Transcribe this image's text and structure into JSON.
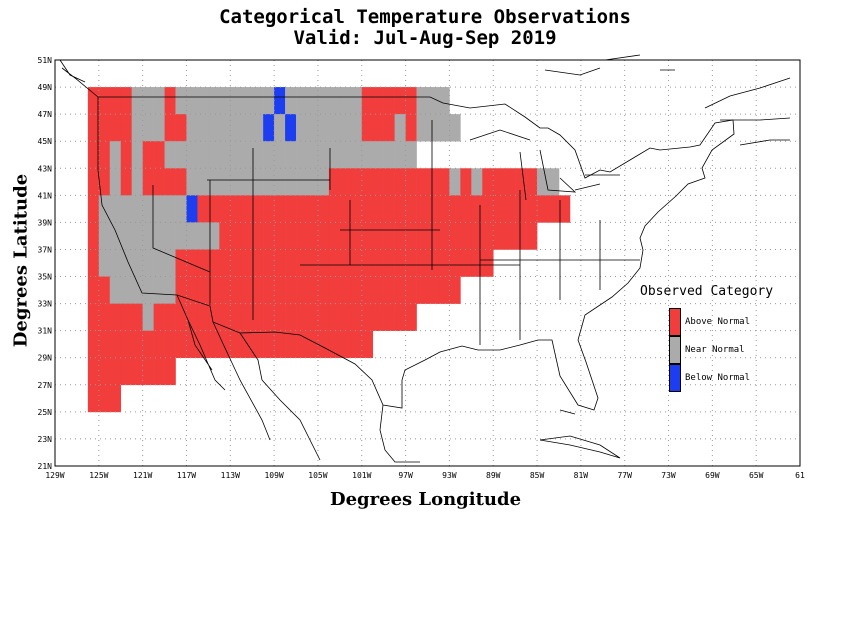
{
  "title": "Categorical Temperature Observations",
  "subtitle": "Valid: Jul-Aug-Sep 2019",
  "x_axis_title": "Degrees Longitude",
  "y_axis_title": "Degrees Latitude",
  "x_ticks": [
    "129W",
    "125W",
    "121W",
    "117W",
    "113W",
    "109W",
    "105W",
    "101W",
    "97W",
    "93W",
    "89W",
    "85W",
    "81W",
    "77W",
    "73W",
    "69W",
    "65W",
    "61"
  ],
  "y_ticks": [
    "51N",
    "49N",
    "47N",
    "45N",
    "43N",
    "41N",
    "39N",
    "37N",
    "35N",
    "33N",
    "31N",
    "29N",
    "27N",
    "25N",
    "23N",
    "21N"
  ],
  "legend": {
    "title": "Observed Category",
    "items": [
      {
        "label": "Above Normal",
        "color": "#f23d3d"
      },
      {
        "label": "Near Normal",
        "color": "#ababab"
      },
      {
        "label": "Below Normal",
        "color": "#1c3ef0"
      }
    ]
  },
  "colors": {
    "above": "#f23d3d",
    "near": "#ababab",
    "below": "#1c3ef0"
  },
  "chart_data": {
    "type": "heatmap",
    "cell_size_deg": 2,
    "xlim": [
      -129,
      -61
    ],
    "ylim": [
      21,
      51
    ],
    "category_codes": {
      "A": "Above Normal",
      "N": "Near Normal",
      "B": "Below Normal"
    },
    "west_edge_lon": -126,
    "rows": [
      {
        "lat_top": 49,
        "cells": "AAAANNNANNNNNNNNNBNNNNNNNAAAAANNN"
      },
      {
        "lat_top": 47,
        "cells": "AAAANNNAANNNNNNNBNBNNNNNNAAANANNNN"
      },
      {
        "lat_top": 45,
        "cells": "AANANAANNNNNNNNNNNNNNNNNNNNNNN"
      },
      {
        "lat_top": 43,
        "cells": "AANANAAAANNNNNNNNNNNNNAAAAAAAAAAANANAAAAANN"
      },
      {
        "lat_top": 41,
        "cells": "ANNNNNNNNBAAAAAAAAAAAAAAAAAAAAAAAAAAAAAAAAAA"
      },
      {
        "lat_top": 39,
        "cells": "ANNNNNNNNNNNAAAAAAAAAAAAAAAAAAAAAAAAAAAAA"
      },
      {
        "lat_top": 37,
        "cells": "ANNNNNNNAAAAAAAAAAAAAAAAAAAAAAAAAAAAA"
      },
      {
        "lat_top": 35,
        "cells": "AANNNNNNAAAAAAAAAAAAAAAAAAAAAAAAAA"
      },
      {
        "lat_top": 33,
        "cells": "AAAAANAAAAAAAAAAAAAAAAAAAAAAAA"
      },
      {
        "lat_top": 31,
        "cells": "AAAAAAAAAAAAAAAAAAAAAAAAAA"
      },
      {
        "lat_top": 29,
        "cells": "AAAAAAAA"
      },
      {
        "lat_top": 27,
        "cells": "AAA"
      }
    ]
  }
}
